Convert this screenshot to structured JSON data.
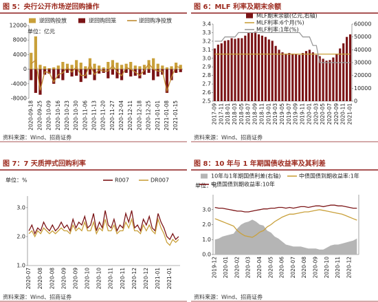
{
  "chart_data": [
    {
      "type": "bar",
      "title": "图 5：央行公开市场逆回购操作",
      "source": "资料来源：Wind、招商证券",
      "unit": "单位：亿元",
      "categories": [
        "2020-09-18",
        null,
        "2020-09-25",
        null,
        "2020-10-09",
        null,
        "2020-10-16",
        null,
        "2020-10-23",
        null,
        "2020-10-30",
        null,
        "2020-11-06",
        null,
        "2020-11-13",
        null,
        "2020-11-20",
        null,
        "2020-11-27",
        null,
        "2020-12-04",
        null,
        "2020-12-11",
        null,
        "2020-12-18",
        null,
        "2020-12-25",
        null,
        "2021-01-01",
        null,
        "2021-01-08",
        null,
        "2021-01-15",
        null
      ],
      "ylim": [
        -8000,
        12000
      ],
      "yticks": [
        12000,
        8000,
        4000,
        0,
        -4000,
        -8000
      ],
      "series": [
        {
          "name": "逆回购投放",
          "type": "bar",
          "color": "#c9a03a",
          "values": [
            4500,
            9000,
            1200,
            800,
            300,
            500,
            1000,
            2000,
            1500,
            1200,
            2500,
            1800,
            800,
            3000,
            1500,
            1000,
            500,
            2000,
            2500,
            1800,
            1200,
            1500,
            2000,
            1000,
            800,
            1200,
            2500,
            3000,
            1500,
            1000,
            500,
            800,
            1800,
            1200
          ]
        },
        {
          "name": "逆回购回笼",
          "type": "bar",
          "color": "#7b1416",
          "values": [
            -3000,
            -6500,
            -7000,
            -1500,
            -1200,
            -4000,
            -2500,
            -3000,
            -1000,
            -2000,
            -1800,
            -3500,
            -2500,
            -1500,
            -3000,
            -1200,
            -1000,
            -2500,
            -1500,
            -2500,
            -3000,
            -1000,
            -2000,
            -1800,
            -2500,
            -1500,
            -1000,
            -3000,
            -2000,
            -1500,
            -6500,
            -3000,
            -1000,
            -800
          ]
        },
        {
          "name": "逆回购净投放",
          "type": "line",
          "color": "#c08a2f",
          "values": [
            1500,
            2500,
            -5800,
            -700,
            -900,
            -3500,
            -1500,
            -1000,
            500,
            -800,
            700,
            -1700,
            -1700,
            1500,
            -1500,
            -200,
            -500,
            -500,
            1000,
            -700,
            -1800,
            500,
            0,
            -800,
            -1700,
            -300,
            1500,
            0,
            -500,
            -500,
            -6000,
            -2200,
            800,
            400
          ]
        }
      ]
    },
    {
      "type": "bar",
      "title": "图 6：MLF 利率及期末余额",
      "source": "资料来源：Wind、招商证券",
      "categories": [
        "2017-09",
        null,
        "2017-11",
        null,
        "2018-01",
        null,
        "2018-03",
        null,
        "2018-05",
        null,
        "2018-07",
        null,
        "2018-09",
        null,
        "2018-11",
        null,
        "2019-01",
        null,
        "2019-03",
        null,
        "2019-05",
        null,
        "2019-07",
        null,
        "2019-09",
        null,
        "2019-11",
        null,
        "2020-01",
        null,
        "2020-03",
        null,
        "2020-05",
        null,
        "2020-07",
        null,
        "2020-09",
        null,
        "2020-11",
        null,
        "2021-01"
      ],
      "ylim": [
        2.5,
        3.4
      ],
      "yticks": [
        {
          "value": 3.4,
          "label": "3.4"
        },
        {
          "value": 3.3,
          "label": "3.3"
        },
        {
          "value": 3.2,
          "label": "3.2"
        },
        {
          "value": 3.1,
          "label": "3.1"
        },
        {
          "value": 3.0,
          "label": "3.0"
        },
        {
          "value": 2.9,
          "label": "2.9"
        },
        {
          "value": 2.8,
          "label": "2.8"
        },
        {
          "value": 2.7,
          "label": "2.7"
        },
        {
          "value": 2.6,
          "label": "2.6"
        },
        {
          "value": 2.5,
          "label": "2.5"
        }
      ],
      "y2lim": [
        0,
        60000
      ],
      "y2ticks": [
        60000,
        50000,
        40000,
        30000,
        20000,
        10000,
        0
      ],
      "series": [
        {
          "name": "MLF期末余额(亿元,右轴)",
          "type": "bar",
          "axis": "y2",
          "color": "#7b1416",
          "values": [
            41000,
            44000,
            45000,
            47000,
            47500,
            49000,
            48500,
            49000,
            49000,
            51000,
            53000,
            53500,
            54000,
            52000,
            51000,
            50000,
            48000,
            47000,
            43000,
            40000,
            38000,
            37000,
            37500,
            37000,
            36500,
            36000,
            37500,
            39000,
            40000,
            38000,
            36000,
            35000,
            33000,
            31500,
            32000,
            34000,
            37000,
            41000,
            45000,
            50000,
            52000
          ]
        },
        {
          "name": "MLF利率:6个月(%)",
          "type": "line",
          "color": "#c9a03a",
          "values": [
            3.05,
            3.05,
            3.05,
            3.05,
            3.05,
            3.05,
            3.05,
            3.05,
            3.05,
            3.05,
            3.05,
            3.05,
            3.05,
            3.05,
            3.05,
            3.05,
            3.05,
            3.05,
            3.05,
            3.05,
            3.05,
            3.05,
            3.05,
            3.05,
            3.05,
            3.05,
            3.05,
            3.05,
            3.05,
            3.05,
            3.05,
            3.05,
            3.05,
            3.05,
            3.05,
            3.05,
            3.05,
            3.05,
            3.05,
            3.05,
            3.05
          ]
        },
        {
          "name": "MLF利率:1年(%)",
          "type": "line",
          "color": "#9a9a9a",
          "values": [
            3.2,
            3.2,
            3.2,
            3.25,
            3.25,
            3.25,
            3.25,
            3.3,
            3.3,
            3.3,
            3.3,
            3.3,
            3.3,
            3.3,
            3.3,
            3.3,
            3.3,
            3.3,
            3.3,
            3.3,
            3.3,
            3.3,
            3.3,
            3.3,
            3.3,
            3.3,
            3.25,
            3.25,
            3.25,
            3.15,
            3.15,
            2.95,
            2.95,
            2.95,
            2.95,
            2.95,
            2.95,
            2.95,
            2.95,
            2.95,
            2.95
          ]
        }
      ]
    },
    {
      "type": "line",
      "title": "图 7：7 天质押式回购利率",
      "source": "资料来源：Wind、招商证券",
      "unit": "单位：%",
      "categories": [
        "2020-07",
        null,
        null,
        null,
        "2020-08",
        null,
        null,
        null,
        "2020-08",
        null,
        null,
        null,
        "2020-09",
        null,
        null,
        null,
        "2020-09",
        null,
        null,
        null,
        "2020-10",
        null,
        null,
        null,
        "2020-10",
        null,
        null,
        null,
        "2020-11",
        null,
        null,
        null,
        "2020-11",
        null,
        null,
        null,
        "2020-12",
        null,
        null,
        null,
        "2020-12",
        null,
        null,
        null,
        "2021-01",
        null,
        null,
        null,
        "2021-01",
        null,
        null,
        null
      ],
      "ylim": [
        1.0,
        3.4
      ],
      "yticks": [
        {
          "value": 3.0,
          "label": "3.0"
        },
        {
          "value": 2.0,
          "label": "2.0"
        },
        {
          "value": 1.0,
          "label": "1.0"
        }
      ],
      "series": [
        {
          "name": "R007",
          "type": "line",
          "color": "#7b1416",
          "values": [
            2.2,
            2.4,
            2.1,
            2.3,
            2.2,
            2.5,
            2.3,
            2.2,
            2.4,
            2.2,
            2.3,
            2.5,
            2.3,
            2.4,
            2.2,
            2.6,
            2.3,
            2.5,
            2.4,
            2.7,
            2.3,
            2.4,
            2.8,
            2.2,
            2.5,
            2.3,
            2.9,
            2.4,
            2.3,
            2.6,
            2.2,
            2.4,
            2.3,
            2.8,
            2.5,
            2.9,
            2.3,
            2.4,
            2.2,
            2.6,
            2.4,
            2.7,
            2.3,
            2.2,
            2.8,
            2.5,
            2.3,
            2.0,
            1.9,
            2.1,
            1.9,
            2.0
          ]
        },
        {
          "name": "DR007",
          "type": "line",
          "color": "#c9a03a",
          "values": [
            2.1,
            2.2,
            2.0,
            2.2,
            2.1,
            2.3,
            2.2,
            2.1,
            2.2,
            2.1,
            2.2,
            2.3,
            2.2,
            2.2,
            2.1,
            2.4,
            2.2,
            2.3,
            2.2,
            2.5,
            2.2,
            2.2,
            2.5,
            2.1,
            2.3,
            2.2,
            2.6,
            2.2,
            2.2,
            2.4,
            2.1,
            2.2,
            2.2,
            2.5,
            2.3,
            2.6,
            2.2,
            2.2,
            2.1,
            2.4,
            2.2,
            2.4,
            2.2,
            2.1,
            2.6,
            2.3,
            2.1,
            1.8,
            1.7,
            1.9,
            1.8,
            1.9
          ]
        }
      ]
    },
    {
      "type": "line",
      "title": "图 8：10 年与 1 年期国债收益率及其利差",
      "source": "资料来源：Wind、招商证券",
      "unit": "单位：%",
      "categories": [
        "2019-12",
        null,
        null,
        "2020-01",
        null,
        null,
        "2020-02",
        null,
        null,
        "2020-03",
        null,
        null,
        "2020-04",
        null,
        null,
        "2020-05",
        null,
        null,
        "2020-06",
        null,
        null,
        "2020-07",
        null,
        null,
        "2020-08",
        null,
        null,
        "2020-09",
        null,
        null,
        "2020-10",
        null,
        null,
        "2020-11",
        null,
        null,
        "2020-12",
        null,
        null
      ],
      "ylim": [
        0,
        4.0
      ],
      "yticks": [
        {
          "value": 3.0,
          "label": "3.0"
        },
        {
          "value": 2.0,
          "label": "2.0"
        },
        {
          "value": 1.0,
          "label": "1.0"
        },
        {
          "value": 0,
          "label": "0.0"
        }
      ],
      "y2lim": [
        0,
        3.0
      ],
      "series": [
        {
          "name": "10年与1年期国债利差(右轴)",
          "type": "area",
          "axis": "y2",
          "color": "#b5b5b5",
          "values": [
            0.75,
            0.8,
            0.9,
            0.95,
            1.0,
            1.05,
            1.3,
            1.5,
            1.6,
            1.65,
            1.75,
            1.65,
            1.5,
            1.45,
            1.2,
            1.1,
            0.9,
            0.8,
            0.65,
            0.5,
            0.45,
            0.4,
            0.4,
            0.4,
            0.35,
            0.3,
            0.3,
            0.3,
            0.25,
            0.25,
            0.35,
            0.45,
            0.5,
            0.5,
            0.55,
            0.6,
            0.65,
            0.7,
            0.8
          ]
        },
        {
          "name": "中债国债到期收益率:1年",
          "type": "line",
          "color": "#c9a03a",
          "values": [
            2.4,
            2.3,
            2.2,
            2.1,
            2.0,
            1.9,
            1.6,
            1.4,
            1.25,
            1.2,
            1.15,
            1.3,
            1.5,
            1.6,
            1.85,
            2.0,
            2.2,
            2.35,
            2.5,
            2.6,
            2.7,
            2.7,
            2.75,
            2.8,
            2.85,
            2.85,
            2.9,
            2.95,
            3.0,
            2.95,
            2.9,
            2.85,
            2.8,
            2.75,
            2.7,
            2.6,
            2.5,
            2.4,
            2.3
          ]
        },
        {
          "name": "中债国债到期收益率:10年",
          "type": "line",
          "color": "#7b1416",
          "values": [
            3.15,
            3.1,
            3.1,
            3.05,
            3.0,
            2.95,
            2.9,
            2.9,
            2.85,
            2.85,
            2.9,
            2.95,
            3.0,
            3.05,
            3.05,
            3.1,
            3.1,
            3.15,
            3.15,
            3.1,
            3.15,
            3.1,
            3.15,
            3.2,
            3.2,
            3.15,
            3.2,
            3.25,
            3.25,
            3.2,
            3.25,
            3.3,
            3.3,
            3.25,
            3.25,
            3.2,
            3.15,
            3.1,
            3.1
          ]
        }
      ]
    }
  ]
}
